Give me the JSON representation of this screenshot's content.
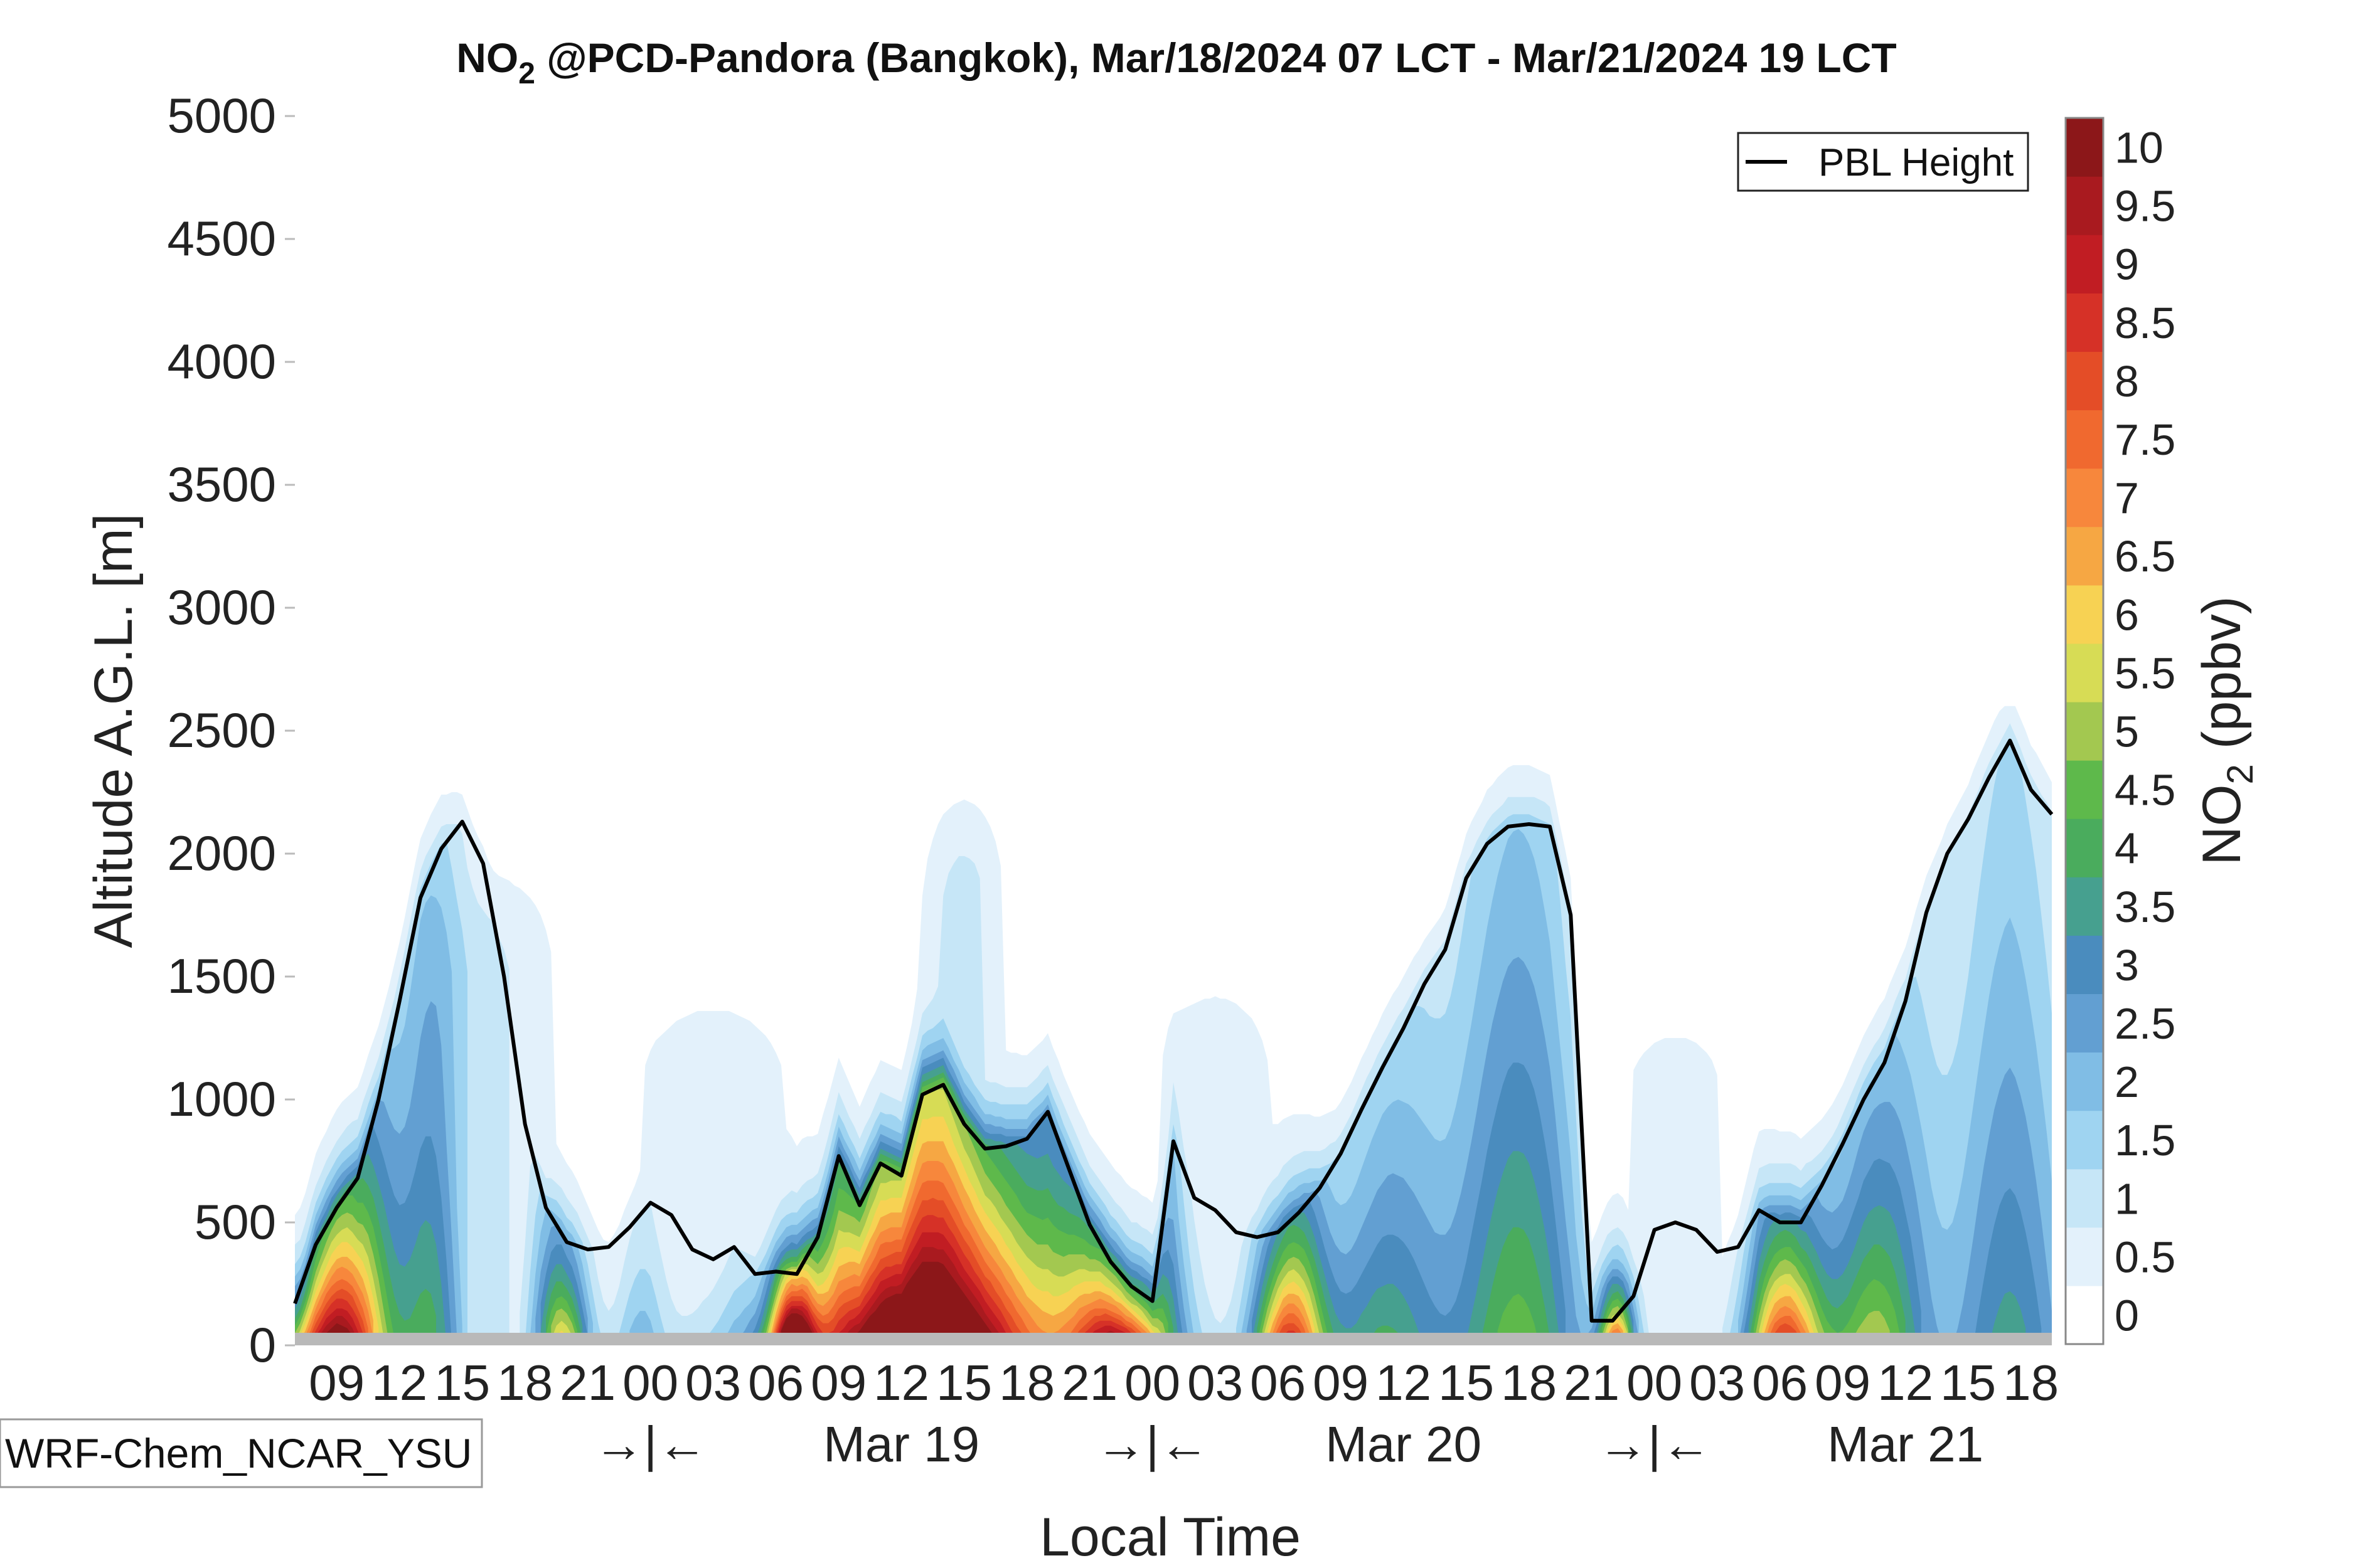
{
  "chart_data": {
    "type": "heatmap",
    "title_species": "NO",
    "title_subscript": "2",
    "title_rest": " @PCD-Pandora (Bangkok), Mar/18/2024 07 LCT - Mar/21/2024 19 LCT",
    "xlabel": "Local Time",
    "ylabel": "Altitude A.G.L. [m]",
    "ylim": [
      0,
      5000
    ],
    "yticks": [
      "0",
      "500",
      "1000",
      "1500",
      "2000",
      "2500",
      "3000",
      "3500",
      "4000",
      "4500",
      "5000"
    ],
    "hour_ticks": [
      {
        "h": 2,
        "label": "09"
      },
      {
        "h": 5,
        "label": "12"
      },
      {
        "h": 8,
        "label": "15"
      },
      {
        "h": 11,
        "label": "18"
      },
      {
        "h": 14,
        "label": "21"
      },
      {
        "h": 17,
        "label": "00"
      },
      {
        "h": 20,
        "label": "03"
      },
      {
        "h": 23,
        "label": "06"
      },
      {
        "h": 26,
        "label": "09"
      },
      {
        "h": 29,
        "label": "12"
      },
      {
        "h": 32,
        "label": "15"
      },
      {
        "h": 35,
        "label": "18"
      },
      {
        "h": 38,
        "label": "21"
      },
      {
        "h": 41,
        "label": "00"
      },
      {
        "h": 44,
        "label": "03"
      },
      {
        "h": 47,
        "label": "06"
      },
      {
        "h": 50,
        "label": "09"
      },
      {
        "h": 53,
        "label": "12"
      },
      {
        "h": 56,
        "label": "15"
      },
      {
        "h": 59,
        "label": "18"
      },
      {
        "h": 62,
        "label": "21"
      },
      {
        "h": 65,
        "label": "00"
      },
      {
        "h": 68,
        "label": "03"
      },
      {
        "h": 71,
        "label": "06"
      },
      {
        "h": 74,
        "label": "09"
      },
      {
        "h": 77,
        "label": "12"
      },
      {
        "h": 80,
        "label": "15"
      },
      {
        "h": 83,
        "label": "18"
      }
    ],
    "day_labels": [
      {
        "h": 29,
        "label": "Mar 19"
      },
      {
        "h": 53,
        "label": "Mar 20"
      },
      {
        "h": 77,
        "label": "Mar 21"
      }
    ],
    "midnight_markers": [
      {
        "h": 17,
        "label": "→|←"
      },
      {
        "h": 41,
        "label": "→|←"
      },
      {
        "h": 65,
        "label": "→|←"
      }
    ],
    "xlim": [
      0,
      84
    ],
    "colorbar": {
      "label_species": "NO",
      "label_subscript": "2",
      "label_rest": " (ppbv)",
      "levels": [
        "0",
        "0.5",
        "1",
        "1.5",
        "2",
        "2.5",
        "3",
        "3.5",
        "4",
        "4.5",
        "5",
        "5.5",
        "6",
        "6.5",
        "7",
        "7.5",
        "8",
        "8.5",
        "9",
        "9.5",
        "10"
      ],
      "colors": [
        "#ffffff",
        "#e3f1fb",
        "#c6e6f7",
        "#9fd4f1",
        "#80bde5",
        "#629fd2",
        "#4a8cbe",
        "#46a08f",
        "#4aac5d",
        "#5eb94b",
        "#a3c850",
        "#d7dc55",
        "#f7d253",
        "#f6a743",
        "#f7873c",
        "#f0692f",
        "#e44d27",
        "#d63127",
        "#c11d23",
        "#a91a1f",
        "#8c1719"
      ]
    },
    "pbl_height": {
      "name": "PBL Height",
      "hours": [
        0,
        1,
        2,
        3,
        4,
        5,
        6,
        7,
        8,
        9,
        10,
        11,
        12,
        13,
        14,
        15,
        16,
        17,
        18,
        19,
        20,
        21,
        22,
        23,
        24,
        25,
        26,
        27,
        28,
        29,
        30,
        31,
        32,
        33,
        34,
        35,
        36,
        37,
        38,
        39,
        40,
        41,
        42,
        43,
        44,
        45,
        46,
        47,
        48,
        49,
        50,
        51,
        52,
        53,
        54,
        55,
        56,
        57,
        58,
        59,
        60,
        61,
        62,
        63,
        64,
        65,
        66,
        67,
        68,
        69,
        70,
        71,
        72,
        73,
        74,
        75,
        76,
        77,
        78,
        79,
        80,
        81,
        82,
        83,
        84
      ],
      "values": [
        170,
        410,
        560,
        680,
        1000,
        1400,
        1820,
        2020,
        2130,
        1960,
        1500,
        900,
        560,
        420,
        390,
        400,
        480,
        580,
        530,
        390,
        350,
        400,
        290,
        300,
        290,
        440,
        770,
        570,
        740,
        690,
        1020,
        1060,
        900,
        800,
        810,
        840,
        950,
        720,
        490,
        340,
        240,
        180,
        830,
        600,
        550,
        460,
        440,
        460,
        540,
        640,
        780,
        960,
        1130,
        1290,
        1470,
        1610,
        1900,
        2040,
        2110,
        2120,
        2110,
        1750,
        100,
        100,
        200,
        470,
        500,
        470,
        380,
        400,
        550,
        500,
        500,
        650,
        820,
        1000,
        1150,
        1400,
        1760,
        2000,
        2140,
        2310,
        2460,
        2260,
        2160
      ]
    },
    "model_label": "WRF-Chem_NCAR_YSU"
  }
}
